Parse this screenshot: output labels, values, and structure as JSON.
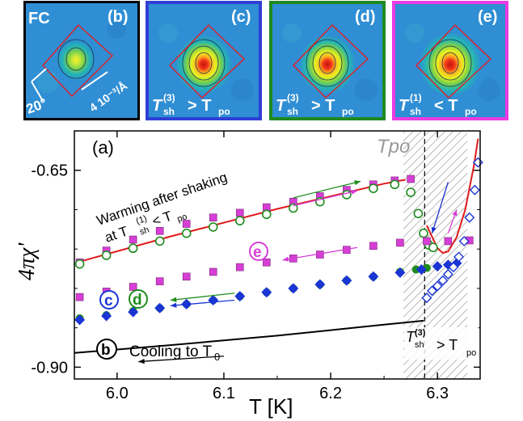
{
  "panels": [
    {
      "tag": "(b)",
      "corner": "FC",
      "note_angle": "20°",
      "note_scale": "4 10⁻³/Å",
      "frame": "#000000",
      "intensity": 0.55
    },
    {
      "tag": "(c)",
      "sub": "(3)",
      "rel": ">",
      "frame": "#2f3fd6",
      "intensity": 0.9
    },
    {
      "tag": "(d)",
      "sub": "(3)",
      "rel": ">",
      "frame": "#1f8a1f",
      "intensity": 0.9
    },
    {
      "tag": "(e)",
      "sub": "(1)",
      "rel": "<",
      "frame": "#e93ce3",
      "intensity": 1.0
    }
  ],
  "colors": {
    "magenta": "#d63ed6",
    "green": "#1e8c1e",
    "blue": "#1a35d4",
    "red": "#e01a1a",
    "black": "#000000"
  },
  "chart_data": {
    "type": "scatter",
    "panel_label": "(a)",
    "xlabel": "T [K]",
    "ylabel": "4πχ'",
    "xlim": [
      5.96,
      6.34
    ],
    "ylim": [
      -0.915,
      -0.6
    ],
    "x_ticks": [
      "6.0",
      "6.1",
      "6.2",
      "6.3"
    ],
    "y_ticks": [
      "-0.65",
      "-0.90"
    ],
    "T_po_label": "Tpo",
    "T_po": 6.288,
    "shaded_region": [
      6.268,
      6.328
    ],
    "annotations": {
      "warming_1": "Warming after shaking",
      "warming_2": "at T",
      "warming_sub": "sh",
      "warming_sup": "(1)",
      "warming_rel": "< T",
      "warming_po": "po",
      "cooling": "Cooling to T",
      "cooling_sub": "0",
      "shade_T": "T",
      "shade_sub": "sh",
      "shade_sup": "(3)",
      "shade_rel": "> T",
      "shade_po": "po",
      "b": "b",
      "c": "c",
      "d": "d",
      "e": "e"
    },
    "series": [
      {
        "marker": "square",
        "color": "#d63ed6",
        "x": [
          5.965,
          5.99,
          6.015,
          6.04,
          6.065,
          6.09,
          6.115,
          6.14,
          6.165,
          6.19,
          6.215,
          6.24,
          6.26,
          6.275
        ],
        "y": [
          -0.767,
          -0.752,
          -0.738,
          -0.727,
          -0.718,
          -0.71,
          -0.704,
          -0.697,
          -0.69,
          -0.683,
          -0.675,
          -0.668,
          -0.663,
          -0.661
        ]
      },
      {
        "marker": "open-circle",
        "color": "#1e8c1e",
        "x": [
          5.965,
          5.99,
          6.015,
          6.04,
          6.065,
          6.09,
          6.115,
          6.14,
          6.165,
          6.19,
          6.215,
          6.24,
          6.26,
          6.275,
          6.282,
          6.287,
          6.292,
          6.296
        ],
        "y": [
          -0.769,
          -0.758,
          -0.749,
          -0.74,
          -0.73,
          -0.722,
          -0.714,
          -0.706,
          -0.698,
          -0.69,
          -0.681,
          -0.673,
          -0.668,
          -0.678,
          -0.705,
          -0.73,
          -0.745,
          -0.748
        ]
      },
      {
        "marker": "square",
        "color": "#d63ed6",
        "x": [
          5.965,
          5.99,
          6.015,
          6.04,
          6.065,
          6.09,
          6.115,
          6.14,
          6.165,
          6.19,
          6.215,
          6.24,
          6.265,
          6.29,
          6.31,
          6.33
        ],
        "y": [
          -0.811,
          -0.804,
          -0.798,
          -0.791,
          -0.785,
          -0.779,
          -0.773,
          -0.767,
          -0.762,
          -0.757,
          -0.751,
          -0.746,
          -0.742,
          -0.74,
          -0.74,
          -0.739
        ]
      },
      {
        "marker": "filled-circle",
        "color": "#1e8c1e",
        "x": [
          5.965,
          5.99,
          6.015,
          6.04,
          6.065,
          6.09,
          6.115,
          6.14,
          6.165,
          6.19,
          6.215,
          6.24,
          6.265,
          6.28,
          6.29
        ],
        "y": [
          -0.838,
          -0.834,
          -0.829,
          -0.825,
          -0.82,
          -0.815,
          -0.81,
          -0.805,
          -0.8,
          -0.795,
          -0.79,
          -0.785,
          -0.779,
          -0.776,
          -0.774
        ]
      },
      {
        "marker": "diamond",
        "color": "#1a35d4",
        "x": [
          5.965,
          5.99,
          6.015,
          6.04,
          6.065,
          6.09,
          6.115,
          6.14,
          6.165,
          6.19,
          6.215,
          6.24,
          6.265,
          6.285,
          6.3,
          6.31,
          6.318
        ],
        "y": [
          -0.84,
          -0.835,
          -0.83,
          -0.825,
          -0.82,
          -0.815,
          -0.81,
          -0.805,
          -0.8,
          -0.795,
          -0.79,
          -0.785,
          -0.78,
          -0.776,
          -0.772,
          -0.77,
          -0.768
        ]
      },
      {
        "marker": "open-diamond",
        "color": "#1a35d4",
        "x": [
          6.29,
          6.295,
          6.3,
          6.305,
          6.31,
          6.315,
          6.32,
          6.325,
          6.33,
          6.335,
          6.338
        ],
        "y": [
          -0.812,
          -0.803,
          -0.797,
          -0.79,
          -0.782,
          -0.773,
          -0.76,
          -0.74,
          -0.71,
          -0.675,
          -0.64
        ]
      }
    ],
    "lines": [
      {
        "color": "#e01a1a",
        "x": [
          5.965,
          6.05,
          6.15,
          6.25,
          6.27
        ],
        "y": [
          -0.766,
          -0.734,
          -0.699,
          -0.667,
          -0.662
        ]
      },
      {
        "color": "#e01a1a",
        "x": [
          6.29,
          6.3,
          6.305,
          6.31,
          6.318,
          6.326,
          6.334,
          6.338
        ],
        "y": [
          -0.72,
          -0.749,
          -0.755,
          -0.753,
          -0.735,
          -0.7,
          -0.645,
          -0.61
        ]
      },
      {
        "color": "#000000",
        "x": [
          5.96,
          6.05,
          6.15,
          6.25,
          6.287
        ],
        "y": [
          -0.882,
          -0.872,
          -0.86,
          -0.846,
          -0.841
        ]
      }
    ],
    "arrows": [
      {
        "color": "#1e8c1e",
        "x": [
          6.165,
          6.228
        ],
        "y": [
          -0.685,
          -0.664
        ]
      },
      {
        "color": "#d63ed6",
        "x": [
          6.165,
          6.225
        ],
        "y": [
          -0.695,
          -0.676
        ]
      },
      {
        "color": "#d63ed6",
        "x": [
          6.225,
          6.155
        ],
        "y": [
          -0.748,
          -0.764
        ]
      },
      {
        "color": "#1e8c1e",
        "x": [
          6.11,
          6.05
        ],
        "y": [
          -0.806,
          -0.815
        ]
      },
      {
        "color": "#1a35d4",
        "x": [
          6.11,
          6.05
        ],
        "y": [
          -0.815,
          -0.822
        ]
      },
      {
        "color": "#000000",
        "x": [
          6.1,
          6.02
        ],
        "y": [
          -0.886,
          -0.893
        ]
      },
      {
        "color": "#1a35d4",
        "x": [
          6.31,
          6.295
        ],
        "y": [
          -0.665,
          -0.73
        ]
      },
      {
        "color": "#d63ed6",
        "x": [
          6.31,
          6.318
        ],
        "y": [
          -0.73,
          -0.7
        ]
      }
    ]
  }
}
